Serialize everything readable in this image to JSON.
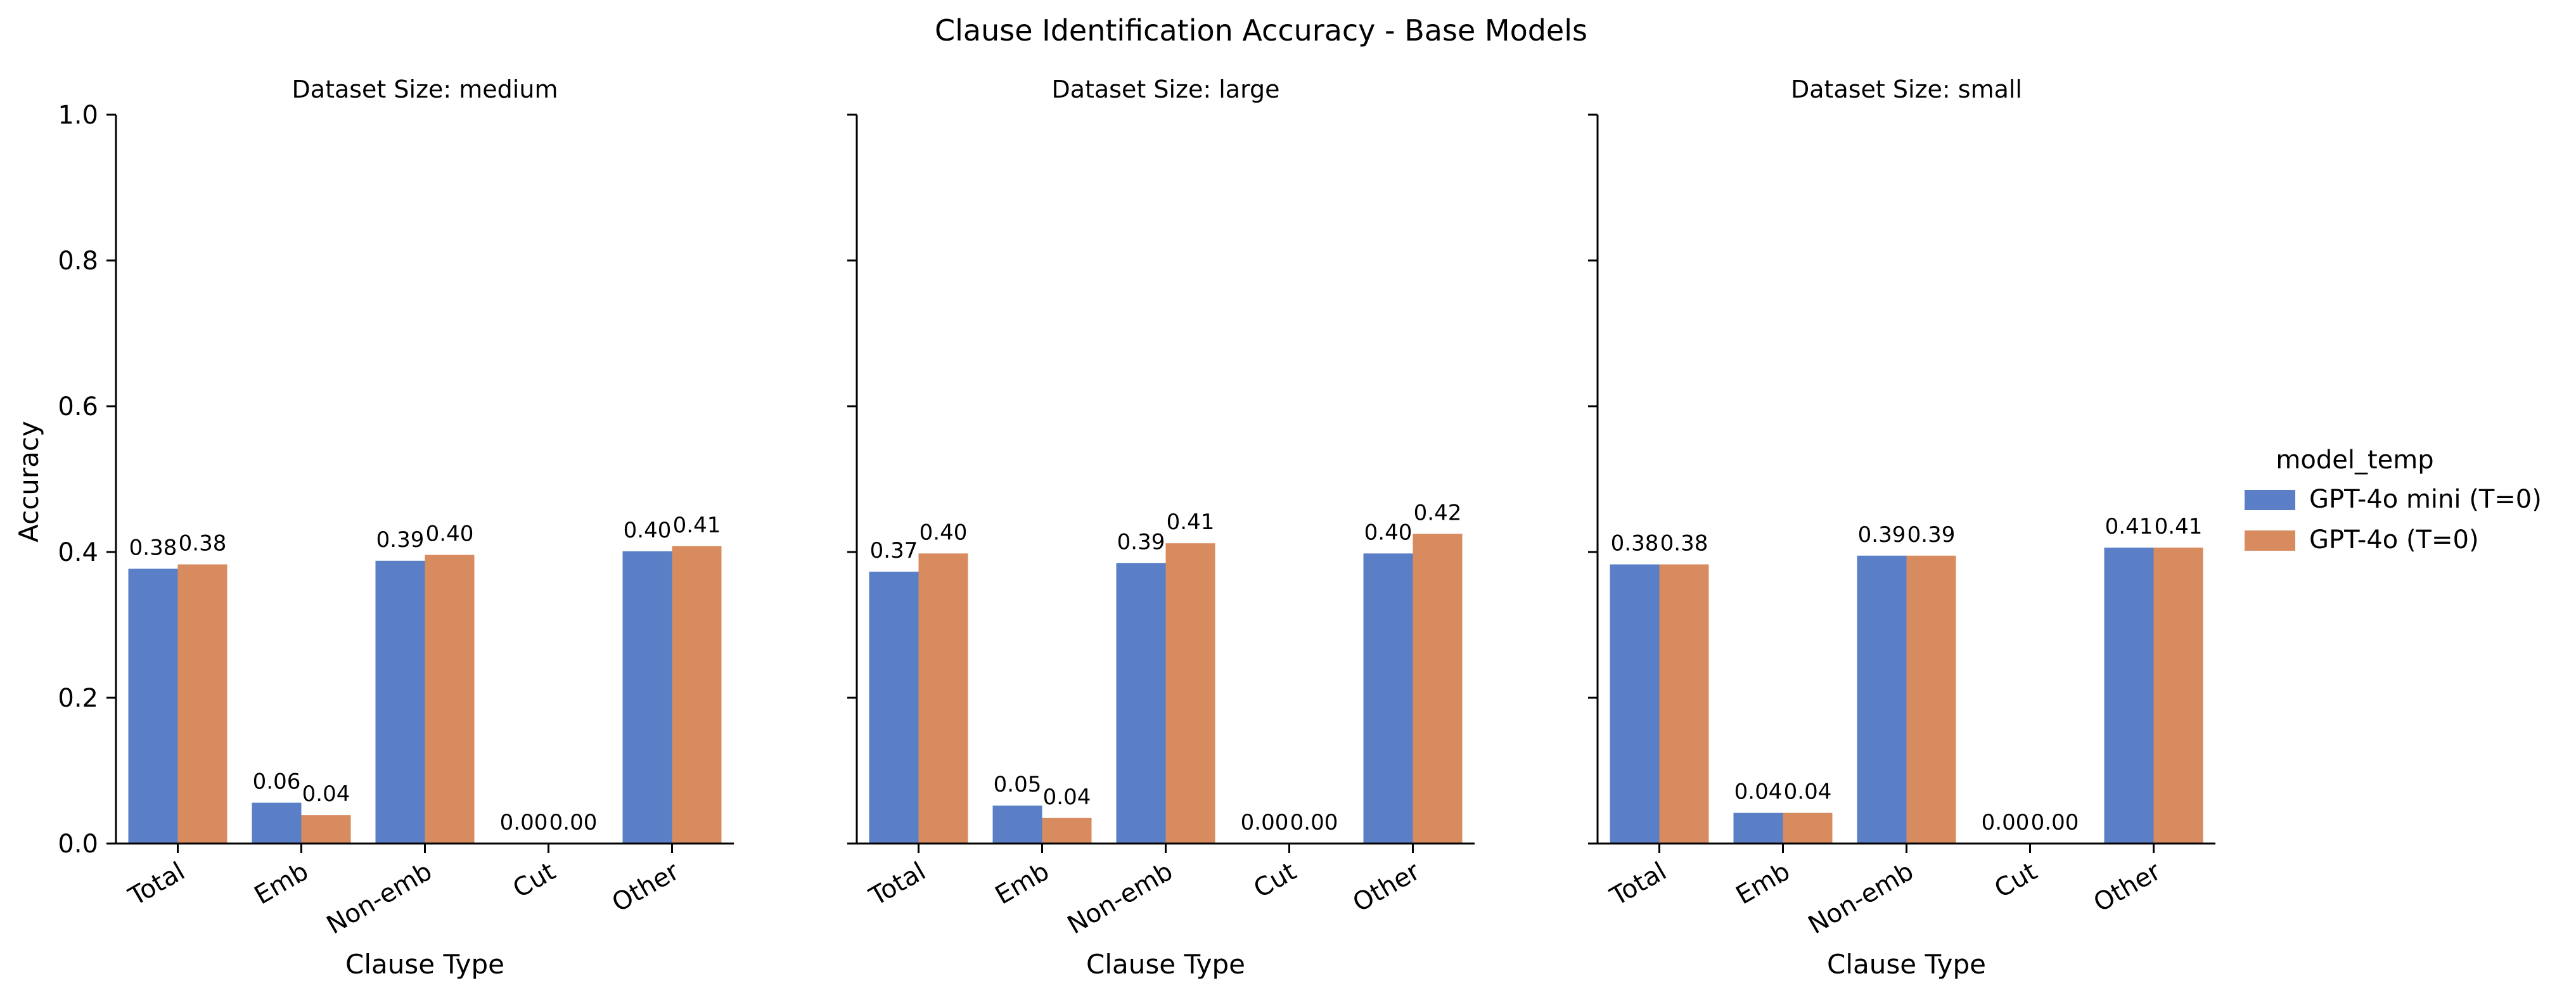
{
  "chart_data": {
    "type": "bar",
    "title": "Clause Identification Accuracy - Base Models",
    "xlabel": "Clause Type",
    "ylabel": "Accuracy",
    "ylim": [
      0,
      1.0
    ],
    "yticks": [
      "0.0",
      "0.2",
      "0.4",
      "0.6",
      "0.8",
      "1.0"
    ],
    "categories": [
      "Total",
      "Emb",
      "Non-emb",
      "Cut",
      "Other"
    ],
    "legend": {
      "title": "model_temp",
      "placement": "right",
      "entries": [
        {
          "name": "GPT-4o mini (T=0)",
          "color": "#5a7fc6"
        },
        {
          "name": "GPT-4o (T=0)",
          "color": "#d88b5e"
        }
      ]
    },
    "panels": [
      {
        "title": "Dataset Size: medium",
        "series": [
          {
            "name": "GPT-4o mini (T=0)",
            "values": [
              0.377,
              0.056,
              0.388,
              0.0,
              0.401
            ],
            "labels": [
              "0.38",
              "0.06",
              "0.39",
              "0.00",
              "0.40"
            ]
          },
          {
            "name": "GPT-4o (T=0)",
            "values": [
              0.383,
              0.039,
              0.396,
              0.0,
              0.408
            ],
            "labels": [
              "0.38",
              "0.04",
              "0.40",
              "0.00",
              "0.41"
            ]
          }
        ]
      },
      {
        "title": "Dataset Size: large",
        "series": [
          {
            "name": "GPT-4o mini (T=0)",
            "values": [
              0.373,
              0.052,
              0.385,
              0.0,
              0.398
            ],
            "labels": [
              "0.37",
              "0.05",
              "0.39",
              "0.00",
              "0.40"
            ]
          },
          {
            "name": "GPT-4o (T=0)",
            "values": [
              0.398,
              0.035,
              0.412,
              0.0,
              0.425
            ],
            "labels": [
              "0.40",
              "0.04",
              "0.41",
              "0.00",
              "0.42"
            ]
          }
        ]
      },
      {
        "title": "Dataset Size: small",
        "series": [
          {
            "name": "GPT-4o mini (T=0)",
            "values": [
              0.383,
              0.042,
              0.395,
              0.0,
              0.406
            ],
            "labels": [
              "0.38",
              "0.04",
              "0.39",
              "0.00",
              "0.41"
            ]
          },
          {
            "name": "GPT-4o (T=0)",
            "values": [
              0.383,
              0.042,
              0.395,
              0.0,
              0.406
            ],
            "labels": [
              "0.38",
              "0.04",
              "0.39",
              "0.00",
              "0.41"
            ]
          }
        ]
      }
    ]
  }
}
